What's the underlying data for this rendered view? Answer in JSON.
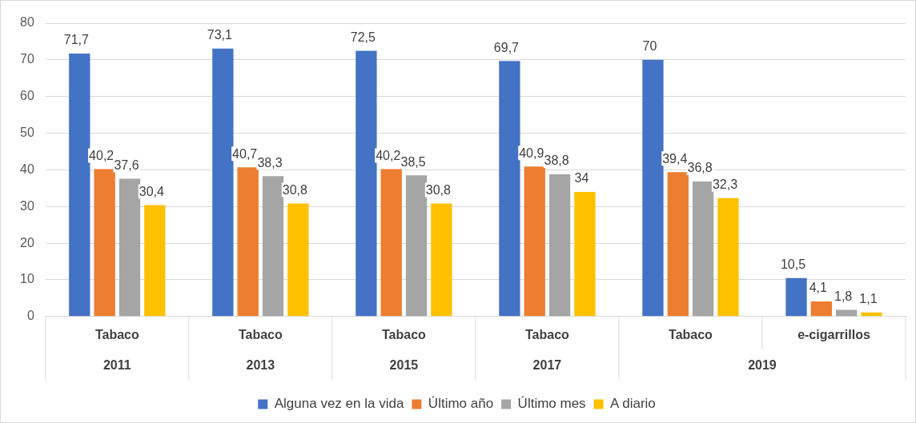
{
  "chart_data": {
    "type": "bar",
    "categories": [
      "Tabaco",
      "Tabaco",
      "Tabaco",
      "Tabaco",
      "Tabaco",
      "e-cigarrillos"
    ],
    "series": [
      {
        "name": "Alguna vez en la vida",
        "color": "#4472c4",
        "values": [
          71.7,
          73.1,
          72.5,
          69.7,
          70,
          10.5
        ],
        "value_labels": [
          "71,7",
          "73,1",
          "72,5",
          "69,7",
          "70",
          "10,5"
        ]
      },
      {
        "name": "Último año",
        "color": "#ed7d31",
        "values": [
          40.2,
          40.7,
          40.2,
          40.9,
          39.4,
          4.1
        ],
        "value_labels": [
          "40,2",
          "40,7",
          "40,2",
          "40,9",
          "39,4",
          "4,1"
        ]
      },
      {
        "name": "Último mes",
        "color": "#a5a5a5",
        "values": [
          37.6,
          38.3,
          38.5,
          38.8,
          36.8,
          1.8
        ],
        "value_labels": [
          "37,6",
          "38,3",
          "38,5",
          "38,8",
          "36,8",
          "1,8"
        ]
      },
      {
        "name": "A diario",
        "color": "#ffc000",
        "values": [
          30.4,
          30.8,
          30.8,
          34,
          32.3,
          1.1
        ],
        "value_labels": [
          "30,4",
          "30,8",
          "30,8",
          "34",
          "32,3",
          "1,1"
        ]
      }
    ],
    "annotations": [
      "2011",
      "2013",
      "2015",
      "2017",
      "2019"
    ],
    "ylim": [
      0,
      80
    ],
    "yticks": [
      0,
      10,
      20,
      30,
      40,
      50,
      60,
      70,
      80
    ],
    "grid": "y",
    "legend": "bottom"
  }
}
